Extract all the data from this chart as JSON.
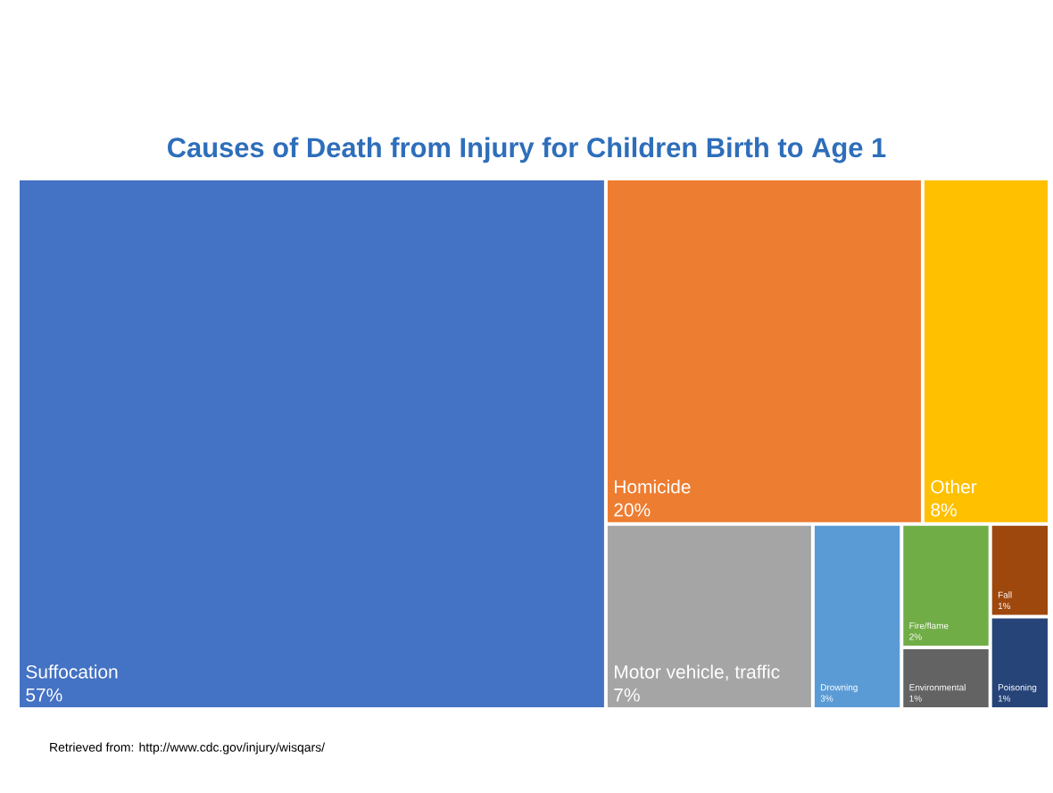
{
  "chart_data": {
    "type": "other",
    "title": "Causes of Death from Injury for Children Birth to Age 1",
    "categories": [
      "Suffocation",
      "Homicide",
      "Other",
      "Motor vehicle, traffic",
      "Drowning",
      "Fire/flame",
      "Environmental",
      "Fall",
      "Poisoning"
    ],
    "values": [
      57,
      20,
      8,
      7,
      3,
      2,
      1,
      1,
      1
    ],
    "value_labels": [
      "57%",
      "20%",
      "8%",
      "7%",
      "3%",
      "2%",
      "1%",
      "1%",
      "1%"
    ],
    "colors": [
      "#4472c4",
      "#ed7d31",
      "#ffc000",
      "#a5a5a5",
      "#5b9bd5",
      "#70ad47",
      "#636363",
      "#9e480e",
      "#264478"
    ],
    "annotations": [
      "Retrieved from: http://www.cdc.gov/injury/wisqars/"
    ]
  }
}
